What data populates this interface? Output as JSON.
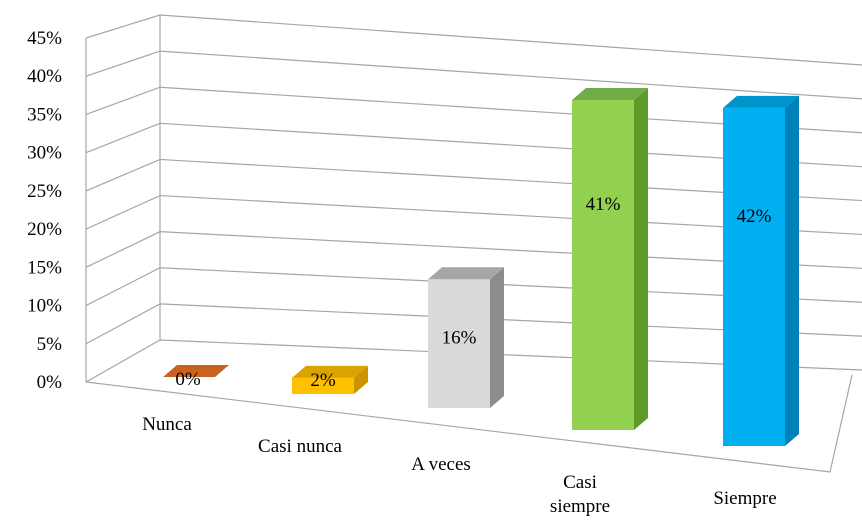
{
  "chart_data": {
    "type": "bar",
    "style": "3d-perspective",
    "categories": [
      {
        "lines": [
          "Nunca"
        ]
      },
      {
        "lines": [
          "Casi nunca"
        ]
      },
      {
        "lines": [
          "A veces"
        ]
      },
      {
        "lines": [
          "Casi",
          "siempre"
        ]
      },
      {
        "lines": [
          "Siempre"
        ]
      }
    ],
    "values": [
      0,
      2,
      16,
      41,
      42
    ],
    "data_labels": [
      "0%",
      "2%",
      "16%",
      "41%",
      "42%"
    ],
    "bar_colors": [
      "#e07b39",
      "#ffc000",
      "#d9d9d9",
      "#92d050",
      "#00b0f0"
    ],
    "bar_side_colors": [
      "#b85a1c",
      "#c99400",
      "#8c8c8c",
      "#5e9a2a",
      "#0082b8"
    ],
    "bar_top_colors": [
      "#c9611f",
      "#d9a300",
      "#a6a6a6",
      "#70ad47",
      "#0094cc"
    ],
    "ylim": [
      0,
      45
    ],
    "y_ticks": [
      "0%",
      "5%",
      "10%",
      "15%",
      "20%",
      "25%",
      "30%",
      "35%",
      "40%",
      "45%"
    ],
    "grid": true
  }
}
